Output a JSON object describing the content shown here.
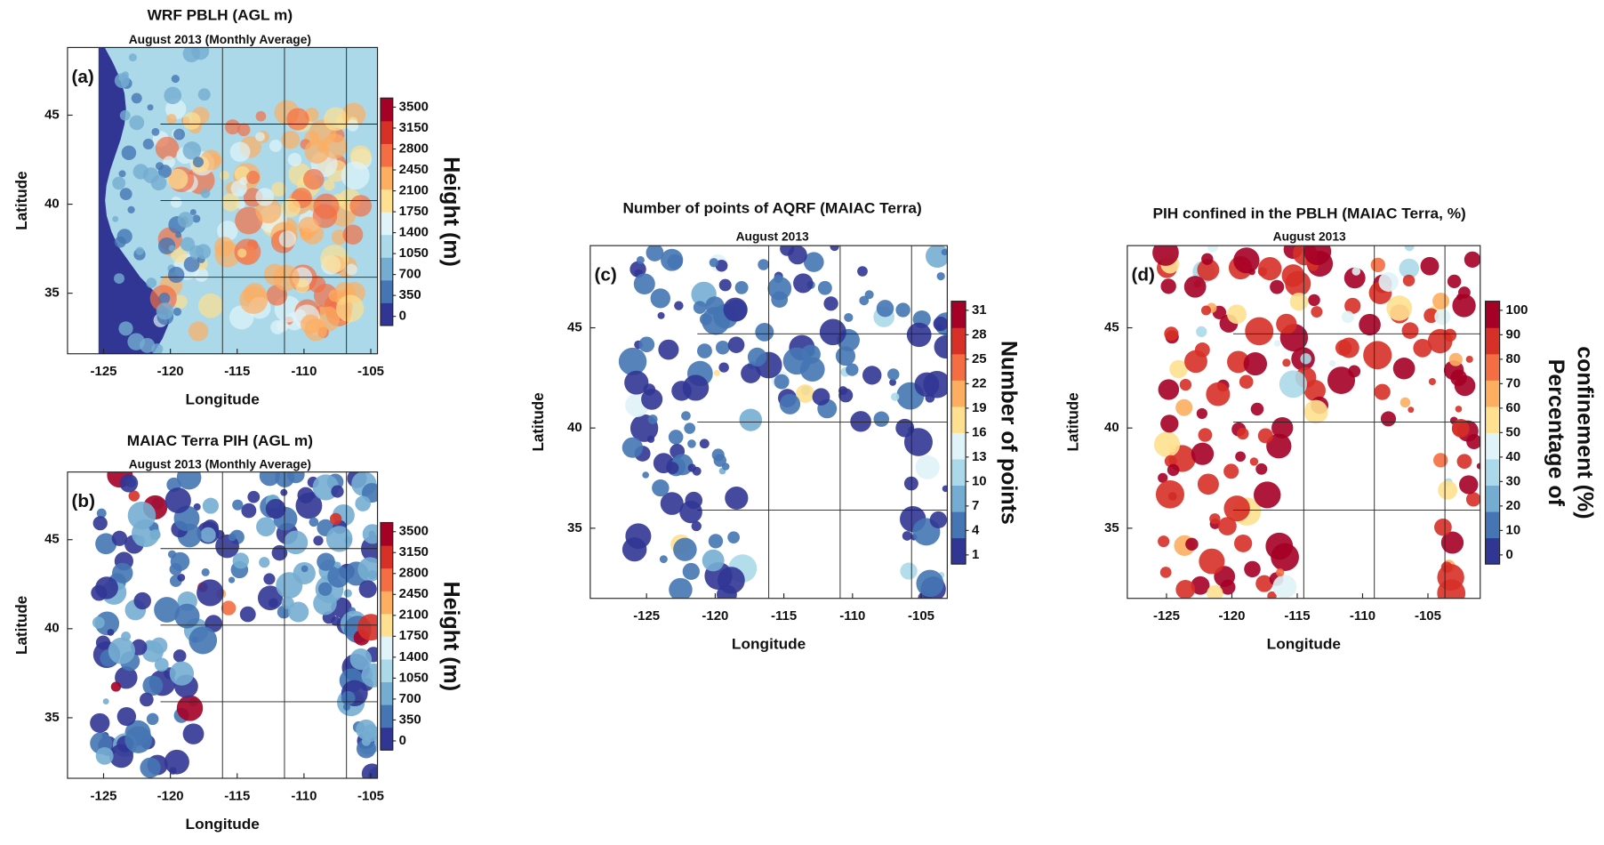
{
  "panels": [
    {
      "title": "WRF PBLH (AGL m)",
      "subtitle": "August 2013 (Monthly Average)",
      "panel_label": "(a)",
      "xlabel": "Longitude",
      "ylabel": "Latitude",
      "xlim": [
        -127.7,
        -104.5
      ],
      "ylim": [
        31.6,
        48.8
      ],
      "xticks": [
        -125,
        -120,
        -115,
        -110,
        -105
      ],
      "yticks": [
        35,
        40,
        45
      ],
      "colorbar": {
        "label": [
          "Height (m)"
        ],
        "ticks": [
          0,
          350,
          700,
          1050,
          1400,
          1750,
          2100,
          2450,
          2800,
          3150,
          3500
        ],
        "colors": [
          "#313695",
          "#4575b4",
          "#74add1",
          "#abd9e9",
          "#e0f3f8",
          "#fee090",
          "#fdae61",
          "#f46d43",
          "#d73027",
          "#a50026"
        ]
      }
    },
    {
      "title": "MAIAC Terra PIH (AGL m)",
      "subtitle": "August 2013 (Monthly Average)",
      "panel_label": "(b)",
      "xlabel": "Longitude",
      "ylabel": "Latitude",
      "xlim": [
        -127.7,
        -104.5
      ],
      "ylim": [
        31.6,
        48.8
      ],
      "xticks": [
        -125,
        -120,
        -115,
        -110,
        -105
      ],
      "yticks": [
        35,
        40,
        45
      ],
      "colorbar": {
        "label": [
          "Height (m)"
        ],
        "ticks": [
          0,
          350,
          700,
          1050,
          1400,
          1750,
          2100,
          2450,
          2800,
          3150,
          3500
        ],
        "colors": [
          "#313695",
          "#4575b4",
          "#74add1",
          "#abd9e9",
          "#e0f3f8",
          "#fee090",
          "#fdae61",
          "#f46d43",
          "#d73027",
          "#a50026"
        ]
      }
    },
    {
      "title": "Number of points of AQRF (MAIAC  Terra)",
      "subtitle": "August 2013",
      "panel_label": "(c)",
      "xlabel": "Longitude",
      "ylabel": "Latitude",
      "xlim": [
        -129.1,
        -103.1
      ],
      "ylim": [
        31.5,
        49.1
      ],
      "xticks": [
        -125,
        -120,
        -115,
        -110,
        -105
      ],
      "yticks": [
        35,
        40,
        45
      ],
      "colorbar": {
        "label": [
          "Number of points"
        ],
        "ticks": [
          1,
          4,
          7,
          10,
          13,
          16,
          19,
          22,
          25,
          28,
          31
        ],
        "colors": [
          "#313695",
          "#4575b4",
          "#74add1",
          "#abd9e9",
          "#e0f3f8",
          "#fee090",
          "#fdae61",
          "#f46d43",
          "#d73027",
          "#a50026"
        ]
      }
    },
    {
      "title": "PIH confined in the PBLH (MAIAC Terra, %)",
      "subtitle": "August 2013",
      "panel_label": "(d)",
      "xlabel": "Longitude",
      "ylabel": "Latitude",
      "xlim": [
        -128.0,
        -101.0
      ],
      "ylim": [
        31.5,
        49.1
      ],
      "xticks": [
        -125,
        -120,
        -115,
        -110,
        -105
      ],
      "yticks": [
        35,
        40,
        45
      ],
      "colorbar": {
        "label": [
          "Percentage of",
          "confinement (%)"
        ],
        "ticks": [
          0,
          10,
          20,
          30,
          40,
          50,
          60,
          70,
          80,
          90,
          100
        ],
        "colors": [
          "#313695",
          "#4575b4",
          "#74add1",
          "#abd9e9",
          "#e0f3f8",
          "#fee090",
          "#fdae61",
          "#f46d43",
          "#d73027",
          "#a50026"
        ]
      }
    }
  ]
}
